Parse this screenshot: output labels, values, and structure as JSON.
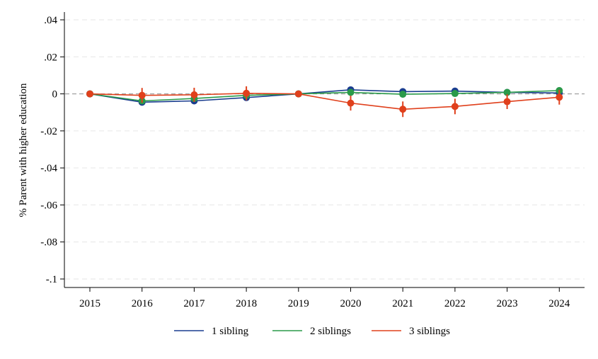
{
  "chart_data": {
    "type": "line",
    "xlabel": "",
    "ylabel": "% Parent with higher education",
    "x": [
      "2015",
      "2016",
      "2017",
      "2018",
      "2019",
      "2020",
      "2021",
      "2022",
      "2023",
      "2024"
    ],
    "ylim": [
      -0.1,
      0.04
    ],
    "yticks": [
      0.04,
      0.02,
      0,
      -0.02,
      -0.04,
      -0.06,
      -0.08,
      -0.1
    ],
    "ytick_labels": [
      ".04",
      ".02",
      "0",
      "-.02",
      "-.04",
      "-.06",
      "-.08",
      "-.1"
    ],
    "grid": true,
    "reference_line": 0,
    "legend_position": "bottom",
    "series": [
      {
        "name": "1 sibling",
        "color": "#1a3d8f",
        "values": [
          0,
          -0.0045,
          -0.0038,
          -0.002,
          0,
          0.0022,
          0.0012,
          0.0015,
          0.0008,
          0.0005
        ],
        "ci": [
          0,
          0.0008,
          0.0008,
          0.0008,
          0,
          0.0009,
          0.0009,
          0.001,
          0.001,
          0.001
        ]
      },
      {
        "name": "2 siblings",
        "color": "#2a9a4a",
        "values": [
          0,
          -0.0038,
          -0.0025,
          -0.0008,
          0,
          0.0008,
          -0.0002,
          0.0002,
          0.0008,
          0.0018
        ],
        "ci": [
          0,
          0.0008,
          0.0008,
          0.0008,
          0,
          0.0009,
          0.0009,
          0.001,
          0.001,
          0.0012
        ]
      },
      {
        "name": "3 siblings",
        "color": "#e0401c",
        "values": [
          0,
          -0.0008,
          -0.0005,
          0.0003,
          0,
          -0.005,
          -0.0083,
          -0.0068,
          -0.0042,
          -0.0018
        ],
        "ci": [
          0,
          0.004,
          0.0038,
          0.0038,
          0,
          0.004,
          0.0042,
          0.0042,
          0.004,
          0.004
        ]
      }
    ]
  }
}
